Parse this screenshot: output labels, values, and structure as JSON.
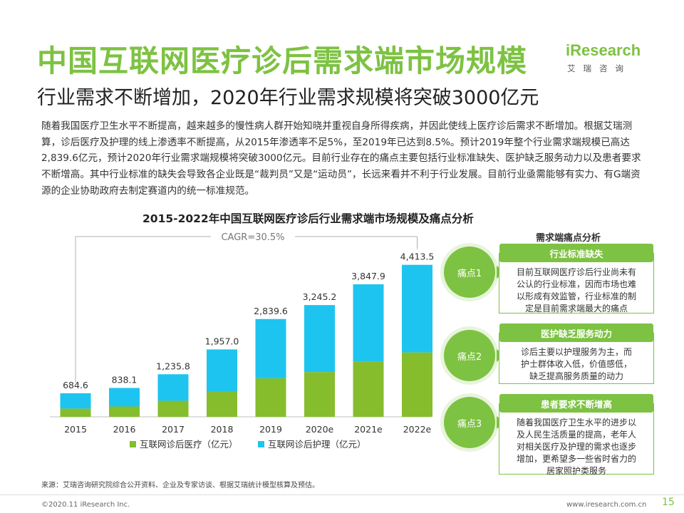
{
  "header": {
    "title": "中国互联网医疗诊后需求端市场规模",
    "subtitle": "行业需求不断增加，2020年行业需求规模将突破3000亿元"
  },
  "logo": {
    "word": "iResearch",
    "cn": "艾瑞咨询"
  },
  "intro": "随着我国医疗卫生水平不断提高，越来越多的慢性病人群开始知晓并重视自身所得疾病，并因此使线上医疗诊后需求不断增加。根据艾瑞测算，诊后医疗及护理的线上渗透率不断提高，从2015年渗透率不足5%，至2019年已达到8.5%。预计2019年整个行业需求端规模已高达2,839.6亿元，预计2020年行业需求端规模将突破3000亿元。目前行业存在的痛点主要包括行业标准缺失、医护缺乏服务动力以及患者要求不断增高。其中行业标准的缺失会导致各企业既是“裁判员”又是“运动员”，长远来看并不利于行业发展。目前行业亟需能够有实力、有G端资源的企业协助政府去制定赛道内的统一标准规范。",
  "chart_data": {
    "type": "bar",
    "stacked": true,
    "title": "2015-2022年中国互联网医疗诊后行业需求端市场规模及痛点分析",
    "annotation": "CAGR=30.5%",
    "categories": [
      "2015",
      "2016",
      "2017",
      "2018",
      "2019",
      "2020e",
      "2021e",
      "2022e"
    ],
    "totals": [
      "684.6",
      "838.1",
      "1,235.8",
      "1,957.0",
      "2,839.6",
      "3,245.2",
      "3,847.9",
      "4,413.5"
    ],
    "series": [
      {
        "name": "互联网诊后医疗（亿元）",
        "color": "#86bd2c",
        "values": [
          240,
          300,
          465,
          725,
          1120,
          1300,
          1600,
          1870
        ]
      },
      {
        "name": "互联网诊后护理（亿元）",
        "color": "#1ec4f0",
        "values": [
          444.6,
          538.1,
          770.8,
          1232.0,
          1719.6,
          1945.2,
          2247.9,
          2543.5
        ]
      }
    ],
    "totals_numeric": [
      684.6,
      838.1,
      1235.8,
      1957.0,
      2839.6,
      3245.2,
      3847.9,
      4413.5
    ],
    "ylim": [
      0,
      4800
    ],
    "grid": false,
    "legend_position": "bottom"
  },
  "side": {
    "header": "需求端痛点分析",
    "items": [
      {
        "bubble": "痛点1",
        "title": "行业标准缺失",
        "lines": [
          "目前互联网医疗诊后行业尚未有",
          "公认的行业标准，因而市场也难",
          "以形成有效监管，行业标准的制",
          "定是目前需求端最大的痛点"
        ]
      },
      {
        "bubble": "痛点2",
        "title": "医护缺乏服务动力",
        "lines": [
          "诊后主要以护理服务为主，而",
          "护士群体收入低，价值感低，",
          "缺乏提高服务质量的动力"
        ]
      },
      {
        "bubble": "痛点3",
        "title": "患者要求不断增高",
        "lines": [
          "随着我国医疗卫生水平的进步以",
          "及人民生活质量的提高，老年人",
          "对相关医疗及护理的需求也逐步",
          "增加，更希望多一些省时省力的",
          "居家照护类服务"
        ]
      }
    ]
  },
  "footer": {
    "source": "来源：艾瑞咨询研究院综合公开资料、企业及专家访谈、根据艾瑞统计模型核算及预估。",
    "copyright": "©2020.11 iResearch Inc.",
    "site": "www.iresearch.com.cn",
    "page": "15"
  }
}
